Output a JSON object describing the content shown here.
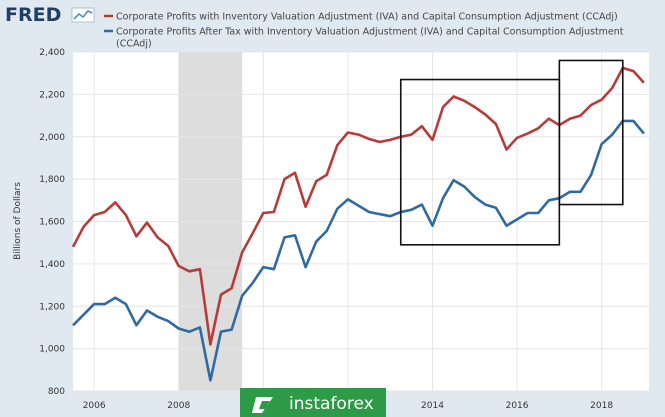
{
  "branding": {
    "logo": "FRED",
    "logo_icon": "line-chart-icon",
    "watermark": "instaforex",
    "watermark_icon": "instaforex-logo-icon"
  },
  "colors": {
    "series1": "#b63c3a",
    "series2": "#2f6aa3",
    "recession": "#dddddd",
    "plot_bg": "#ffffff",
    "page_bg": "#e1e9f0",
    "grid": "#e5e5e5",
    "watermark_bg": "#2d9a48"
  },
  "chart_data": {
    "type": "line",
    "ylabel": "Billions of Dollars",
    "xlabel": "",
    "x_range": [
      2005.5,
      2019.12
    ],
    "ylim": [
      800,
      2400
    ],
    "y_ticks": [
      800,
      1000,
      1200,
      1400,
      1600,
      1800,
      2000,
      2200,
      2400
    ],
    "y_tick_labels": [
      "800",
      "1,000",
      "1,200",
      "1,400",
      "1,600",
      "1,800",
      "2,000",
      "2,200",
      "2,400"
    ],
    "x_ticks": [
      2006,
      2008,
      2010,
      2012,
      2014,
      2016,
      2018
    ],
    "x_tick_labels": [
      "2006",
      "2008",
      "2010",
      "2012",
      "2014",
      "2016",
      "2018"
    ],
    "grid": true,
    "legend_position": "top",
    "recession": {
      "start": 2008.0,
      "end": 2009.5
    },
    "annotation_boxes": [
      {
        "x_start": 2013.25,
        "x_end": 2017.0,
        "y_start": 1490,
        "y_end": 2270
      },
      {
        "x_start": 2017.0,
        "x_end": 2018.5,
        "y_start": 1680,
        "y_end": 2360
      }
    ],
    "x": [
      2005.5,
      2005.75,
      2006.0,
      2006.25,
      2006.5,
      2006.75,
      2007.0,
      2007.25,
      2007.5,
      2007.75,
      2008.0,
      2008.25,
      2008.5,
      2008.75,
      2009.0,
      2009.25,
      2009.5,
      2009.75,
      2010.0,
      2010.25,
      2010.5,
      2010.75,
      2011.0,
      2011.25,
      2011.5,
      2011.75,
      2012.0,
      2012.25,
      2012.5,
      2012.75,
      2013.0,
      2013.25,
      2013.5,
      2013.75,
      2014.0,
      2014.25,
      2014.5,
      2014.75,
      2015.0,
      2015.25,
      2015.5,
      2015.75,
      2016.0,
      2016.25,
      2016.5,
      2016.75,
      2017.0,
      2017.25,
      2017.5,
      2017.75,
      2018.0,
      2018.25,
      2018.5,
      2018.75,
      2019.0
    ],
    "series": [
      {
        "name": "Corporate Profits with Inventory Valuation Adjustment (IVA) and Capital Consumption Adjustment (CCAdj)",
        "values": [
          1480,
          1575,
          1630,
          1645,
          1690,
          1630,
          1530,
          1595,
          1525,
          1485,
          1390,
          1365,
          1375,
          1020,
          1255,
          1285,
          1455,
          1545,
          1640,
          1645,
          1800,
          1830,
          1670,
          1790,
          1820,
          1960,
          2020,
          2010,
          1990,
          1975,
          1985,
          2000,
          2010,
          2050,
          1985,
          2140,
          2190,
          2170,
          2140,
          2105,
          2060,
          1940,
          1995,
          2015,
          2040,
          2085,
          2055,
          2085,
          2100,
          2150,
          2175,
          2230,
          2325,
          2310,
          2255
        ]
      },
      {
        "name": "Corporate Profits After Tax with Inventory Valuation Adjustment (IVA) and Capital Consumption Adjustment (CCAdj)",
        "values": [
          1110,
          1160,
          1210,
          1210,
          1240,
          1210,
          1110,
          1180,
          1150,
          1130,
          1095,
          1080,
          1100,
          850,
          1080,
          1090,
          1250,
          1310,
          1385,
          1375,
          1525,
          1535,
          1385,
          1505,
          1555,
          1660,
          1705,
          1675,
          1645,
          1635,
          1625,
          1645,
          1655,
          1680,
          1580,
          1710,
          1795,
          1765,
          1715,
          1680,
          1665,
          1580,
          1610,
          1640,
          1640,
          1700,
          1710,
          1740,
          1740,
          1820,
          1965,
          2010,
          2075,
          2075,
          2015
        ]
      }
    ]
  }
}
